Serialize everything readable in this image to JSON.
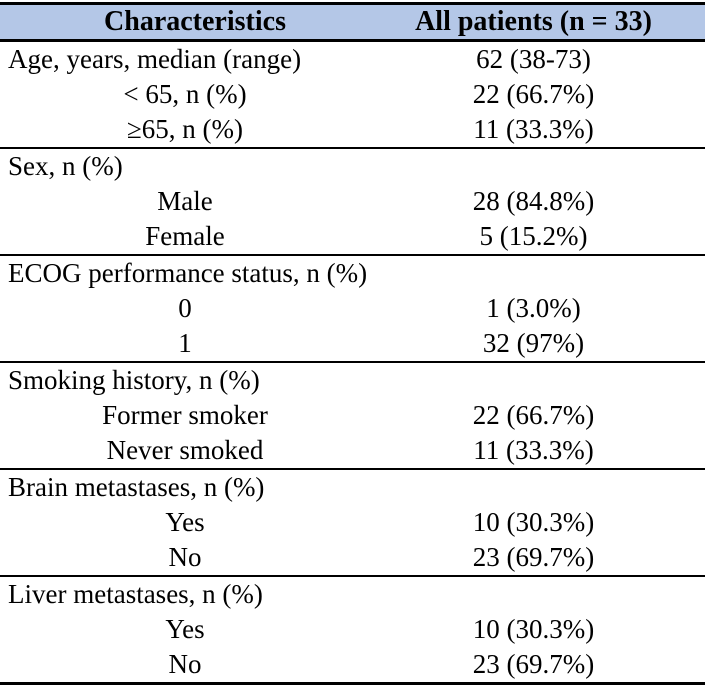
{
  "colors": {
    "header_bg": "#B4C7E7",
    "rule": "#000000",
    "text": "#000000",
    "page_bg": "#FFFFFF"
  },
  "table": {
    "header": {
      "characteristics": "Characteristics",
      "all_patients": "All patients (n = 33)"
    },
    "sections": [
      {
        "rows": [
          {
            "label": "Age, years, median (range)",
            "value": "62 (38-73)",
            "align": "left"
          },
          {
            "label": "< 65, n (%)",
            "value": "22 (66.7%)",
            "align": "center"
          },
          {
            "label": "≥65, n (%)",
            "value": "11 (33.3%)",
            "align": "center"
          }
        ]
      },
      {
        "rows": [
          {
            "label": "Sex, n (%)",
            "value": "",
            "align": "left"
          },
          {
            "label": "Male",
            "value": "28 (84.8%)",
            "align": "center"
          },
          {
            "label": "Female",
            "value": "5 (15.2%)",
            "align": "center"
          }
        ]
      },
      {
        "rows": [
          {
            "label": "ECOG performance status, n (%)",
            "value": "",
            "align": "left"
          },
          {
            "label": "0",
            "value": "1 (3.0%)",
            "align": "center"
          },
          {
            "label": "1",
            "value": "32 (97%)",
            "align": "center"
          }
        ]
      },
      {
        "rows": [
          {
            "label": "Smoking history, n (%)",
            "value": "",
            "align": "left"
          },
          {
            "label": "Former smoker",
            "value": "22 (66.7%)",
            "align": "center"
          },
          {
            "label": "Never smoked",
            "value": "11 (33.3%)",
            "align": "center"
          }
        ]
      },
      {
        "rows": [
          {
            "label": "Brain metastases, n (%)",
            "value": "",
            "align": "left"
          },
          {
            "label": "Yes",
            "value": "10 (30.3%)",
            "align": "center"
          },
          {
            "label": "No",
            "value": "23 (69.7%)",
            "align": "center"
          }
        ]
      },
      {
        "rows": [
          {
            "label": "Liver metastases, n (%)",
            "value": "",
            "align": "left"
          },
          {
            "label": "Yes",
            "value": "10 (30.3%)",
            "align": "center"
          },
          {
            "label": "No",
            "value": "23 (69.7%)",
            "align": "center"
          }
        ]
      }
    ]
  }
}
